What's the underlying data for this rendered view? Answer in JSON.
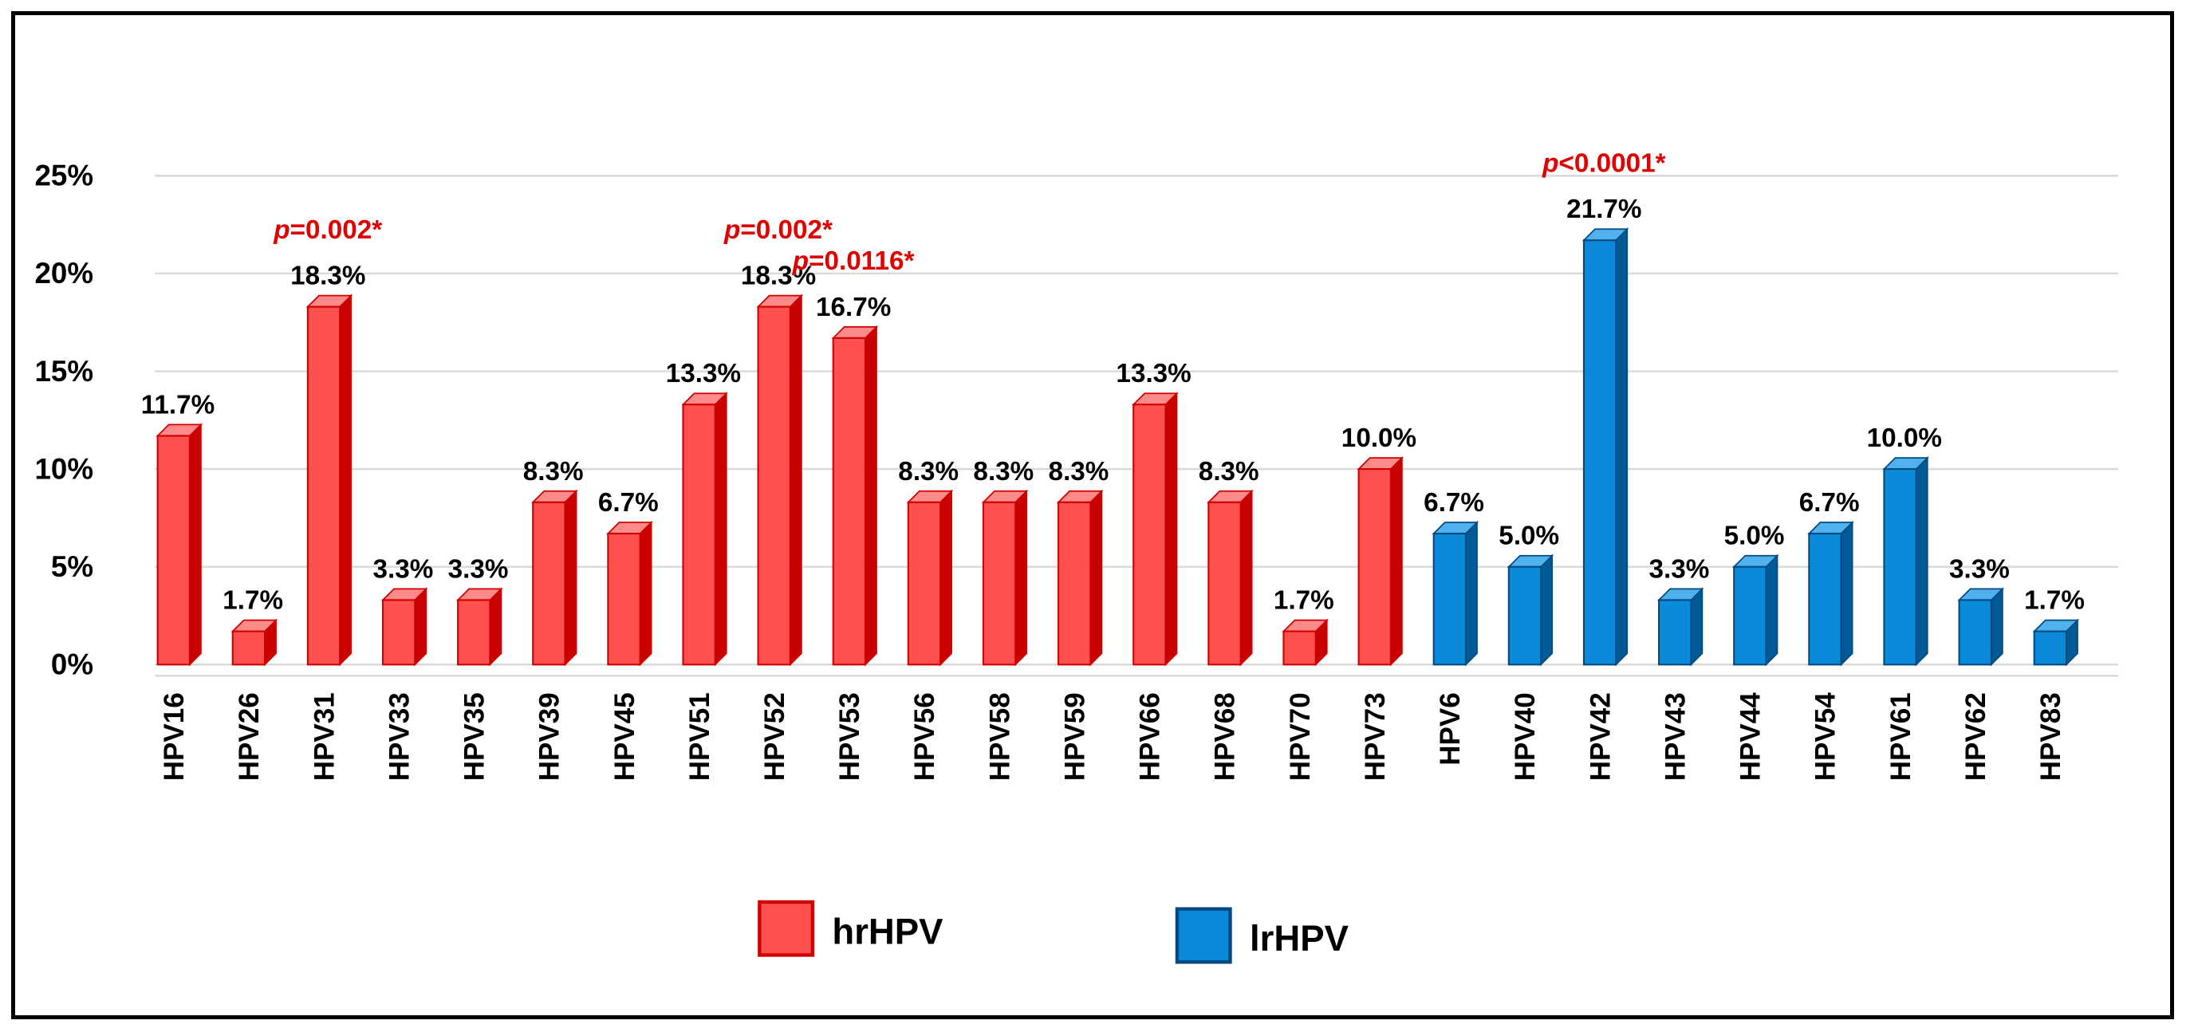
{
  "chart_data": {
    "type": "bar",
    "title": "",
    "xlabel": "",
    "ylabel": "",
    "ylim": [
      0,
      25
    ],
    "yticks": [
      0,
      5,
      10,
      15,
      20,
      25
    ],
    "ytick_labels": [
      "0%",
      "5%",
      "10%",
      "15%",
      "20%",
      "25%"
    ],
    "grid": true,
    "categories": [
      "HPV16",
      "HPV26",
      "HPV31",
      "HPV33",
      "HPV35",
      "HPV39",
      "HPV45",
      "HPV51",
      "HPV52",
      "HPV53",
      "HPV56",
      "HPV58",
      "HPV59",
      "HPV66",
      "HPV68",
      "HPV70",
      "HPV73",
      "HPV6",
      "HPV40",
      "HPV42",
      "HPV43",
      "HPV44",
      "HPV54",
      "HPV61",
      "HPV62",
      "HPV83"
    ],
    "values": [
      11.7,
      1.7,
      18.3,
      3.3,
      3.3,
      8.3,
      6.7,
      13.3,
      18.3,
      16.7,
      8.3,
      8.3,
      8.3,
      13.3,
      8.3,
      1.7,
      10.0,
      6.7,
      5.0,
      21.7,
      3.3,
      5.0,
      6.7,
      10.0,
      3.3,
      1.7
    ],
    "value_labels": [
      "11.7%",
      "1.7%",
      "18.3%",
      "3.3%",
      "3.3%",
      "8.3%",
      "6.7%",
      "13.3%",
      "18.3%",
      "16.7%",
      "8.3%",
      "8.3%",
      "8.3%",
      "13.3%",
      "8.3%",
      "1.7%",
      "10.0%",
      "6.7%",
      "5.0%",
      "21.7%",
      "3.3%",
      "5.0%",
      "6.7%",
      "10.0%",
      "3.3%",
      "1.7%"
    ],
    "groups": [
      "hr",
      "hr",
      "hr",
      "hr",
      "hr",
      "hr",
      "hr",
      "hr",
      "hr",
      "hr",
      "hr",
      "hr",
      "hr",
      "hr",
      "hr",
      "hr",
      "hr",
      "lr",
      "lr",
      "lr",
      "lr",
      "lr",
      "lr",
      "lr",
      "lr",
      "lr"
    ],
    "annotations": [
      {
        "category": "HPV31",
        "p_label": "p",
        "text": "=0.002*"
      },
      {
        "category": "HPV52",
        "p_label": "p",
        "text": "=0.002*"
      },
      {
        "category": "HPV53",
        "p_label": "p",
        "text": "=0.0116*"
      },
      {
        "category": "HPV42",
        "p_label": "p",
        "text": "<0.0001*"
      }
    ],
    "legend": {
      "position": "bottom-center",
      "entries": [
        {
          "key": "hr",
          "label": "hrHPV"
        },
        {
          "key": "lr",
          "label": "lrHPV"
        }
      ]
    },
    "colors": {
      "hr_front": "#ff5050",
      "hr_side": "#c80000",
      "hr_top": "#ff8a8a",
      "hr_border": "#d00000",
      "lr_front": "#0a8ad8",
      "lr_side": "#005a96",
      "lr_top": "#4fb2ee",
      "lr_border": "#004a80",
      "annotation": "#e00000",
      "grid": "#d9d9d9",
      "text": "#000000"
    }
  }
}
